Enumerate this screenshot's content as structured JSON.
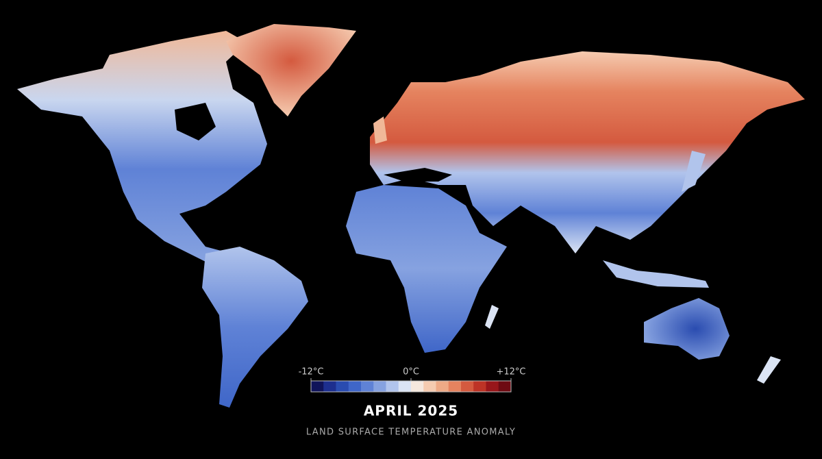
{
  "map": {
    "title": "APRIL 2025",
    "subtitle": "LAND SURFACE TEMPERATURE ANOMALY",
    "legend": {
      "ticks": [
        {
          "value": -12,
          "label": "-12°C"
        },
        {
          "value": 0,
          "label": "0°C"
        },
        {
          "value": 12,
          "label": "+12°C"
        }
      ],
      "colors": [
        "#10145a",
        "#1d2f8f",
        "#2a4cb0",
        "#3f66c8",
        "#5f82d6",
        "#86a2e0",
        "#b1c4ec",
        "#dbe4f4",
        "#f5e8de",
        "#f5cbb0",
        "#eeaa86",
        "#e5835f",
        "#d45a3f",
        "#bd3326",
        "#98161a",
        "#6e0a12"
      ]
    }
  }
}
